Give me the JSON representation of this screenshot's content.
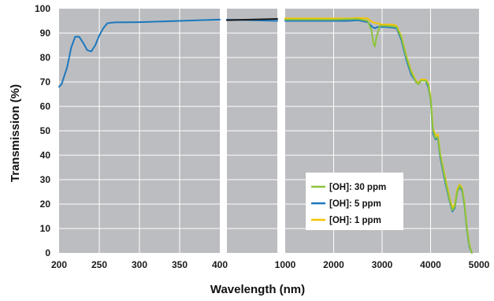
{
  "chart_data": {
    "type": "line",
    "title": "",
    "xlabel": "Wavelength (nm)",
    "ylabel": "Transmission (%)",
    "ylim": [
      0,
      100
    ],
    "grid": true,
    "legend_position": "bottom-right",
    "y_ticks": [
      "0",
      "10",
      "20",
      "30",
      "40",
      "50",
      "60",
      "70",
      "80",
      "90",
      "100"
    ],
    "panels": [
      {
        "name": "uv",
        "xlim": [
          200,
          400
        ],
        "x_ticks": [
          "200",
          "250",
          "300",
          "350",
          "400"
        ],
        "x_tick_values": [
          200,
          250,
          300,
          350,
          400
        ]
      },
      {
        "name": "break",
        "xlim": [
          400,
          1000
        ],
        "x_ticks": [],
        "x_tick_values": []
      },
      {
        "name": "ir",
        "xlim": [
          1000,
          5000
        ],
        "x_ticks": [
          "1000",
          "2000",
          "3000",
          "4000",
          "5000"
        ],
        "x_tick_values": [
          1000,
          2000,
          3000,
          4000,
          5000
        ]
      }
    ],
    "series": [
      {
        "name": "[OH]: 30 ppm",
        "color": "#8cc43c",
        "x": [
          1000,
          1500,
          2000,
          2500,
          2700,
          2780,
          2820,
          2850,
          2880,
          2950,
          3100,
          3300,
          3400,
          3500,
          3600,
          3700,
          3750,
          3800,
          3900,
          3950,
          4000,
          4050,
          4100,
          4150,
          4200,
          4300,
          4400,
          4450,
          4500,
          4550,
          4600,
          4650,
          4700,
          4750,
          4800,
          4850
        ],
        "y": [
          95.5,
          95.5,
          95.5,
          95.8,
          95,
          91,
          86,
          84.5,
          88,
          93,
          93,
          92.5,
          88,
          80,
          74,
          70,
          69,
          70.5,
          70.5,
          69,
          63,
          50,
          47,
          47.5,
          40,
          30,
          21,
          17.5,
          19,
          25,
          27.5,
          26,
          20,
          10,
          3,
          0
        ]
      },
      {
        "name": "[OH]: 5 ppm",
        "color": "#1b78bf",
        "x": [
          200,
          203,
          210,
          215,
          220,
          225,
          230,
          235,
          240,
          245,
          250,
          255,
          260,
          265,
          270,
          300,
          350,
          400,
          1000,
          1500,
          2000,
          2300,
          2500,
          2700,
          2800,
          2850,
          2900,
          3000,
          3100,
          3300,
          3400,
          3500,
          3600,
          3700,
          3750,
          3800,
          3900,
          3950,
          4000,
          4050,
          4100,
          4150,
          4200,
          4300,
          4400,
          4450,
          4500,
          4550,
          4600,
          4650,
          4700,
          4750,
          4800,
          4850
        ],
        "y": [
          68,
          69,
          76,
          84,
          88.5,
          88.5,
          86,
          83,
          82.5,
          85,
          89,
          92,
          94,
          94.3,
          94.4,
          94.5,
          95,
          95.5,
          95,
          95,
          95,
          95,
          95.3,
          94.5,
          92.5,
          92,
          92.5,
          92.5,
          92.5,
          92,
          87,
          79,
          73,
          70,
          69,
          70.5,
          70.5,
          68,
          63,
          49,
          46.5,
          47,
          39,
          29,
          20.5,
          17,
          18.5,
          25,
          27,
          25.5,
          19.5,
          9.5,
          2.5,
          0
        ]
      },
      {
        "name": "[OH]: 1 ppm",
        "color": "#f5c400",
        "x": [
          1000,
          1500,
          2000,
          2300,
          2500,
          2700,
          2800,
          3000,
          3200,
          3300,
          3400,
          3500,
          3600,
          3700,
          3750,
          3800,
          3900,
          3950,
          4000,
          4050,
          4100,
          4150,
          4200,
          4300,
          4400,
          4450,
          4500,
          4550,
          4600,
          4650,
          4700,
          4750,
          4800,
          4850
        ],
        "y": [
          96,
          96,
          96,
          96,
          96.2,
          96,
          94.5,
          93.5,
          93.5,
          93,
          88.5,
          80.5,
          74.5,
          70.5,
          69.5,
          71,
          71,
          69.5,
          64,
          51,
          48,
          48.5,
          40.5,
          31,
          22,
          18.5,
          20,
          26,
          28,
          26.5,
          20.5,
          10.5,
          3.5,
          0
        ]
      },
      {
        "name": "",
        "color": "#1a1a1a",
        "x": [
          400,
          1000
        ],
        "y": [
          95.3,
          95.8
        ]
      }
    ]
  }
}
